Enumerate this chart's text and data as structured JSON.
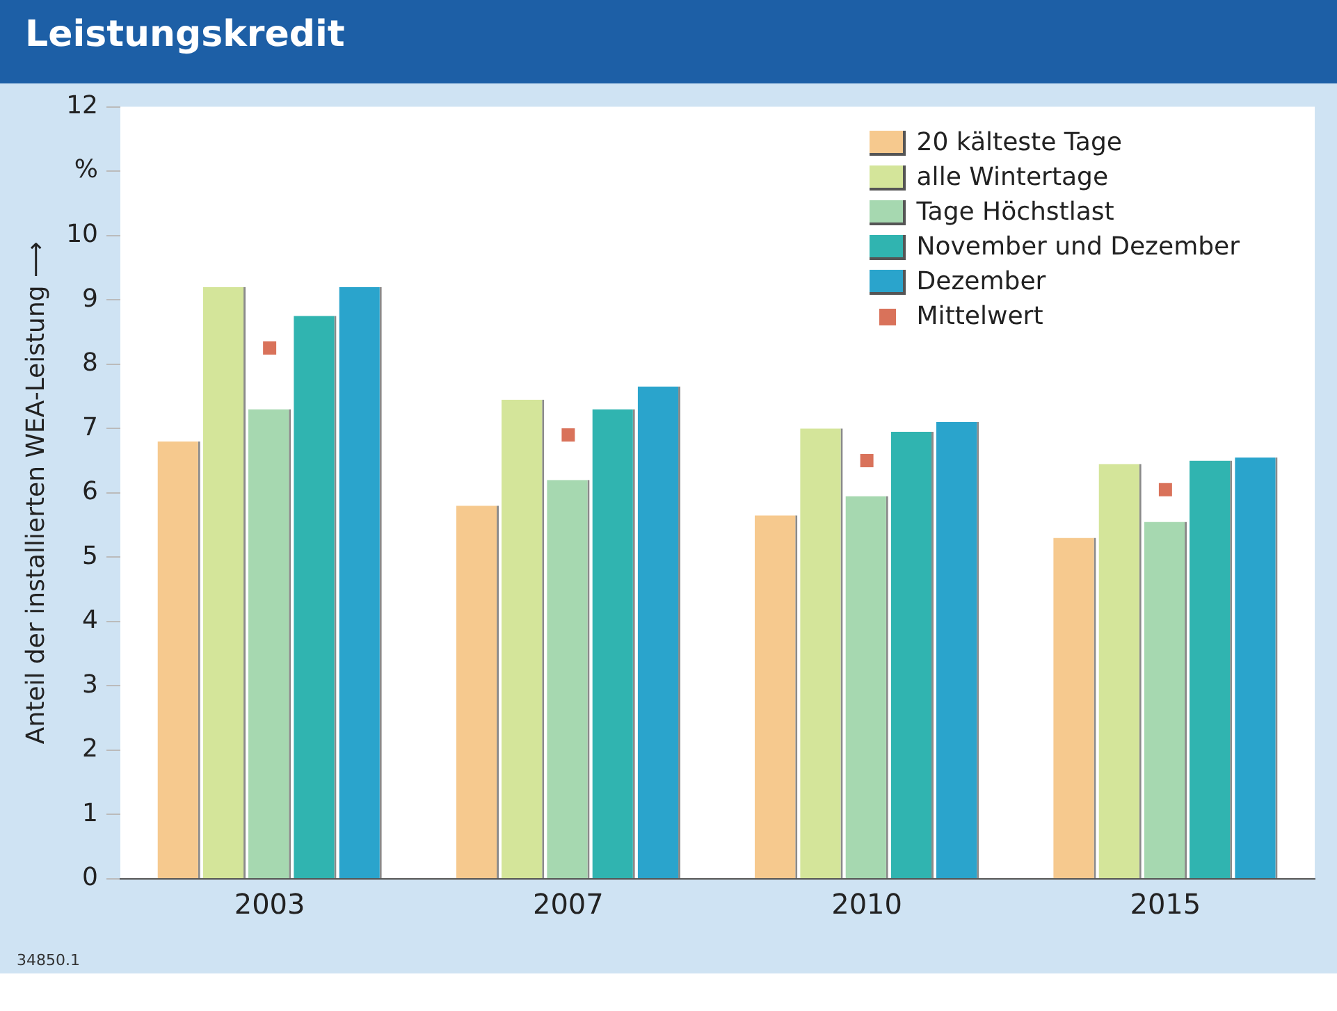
{
  "chart_data": {
    "type": "bar",
    "title": "Leistungskredit",
    "ylabel": "Anteil der installierten WEA-Leistung ⟶",
    "categories": [
      "2003",
      "2007",
      "2010",
      "2015"
    ],
    "series": [
      {
        "name": "20 kälteste Tage",
        "color": "#f6c98e",
        "values": [
          6.8,
          5.8,
          5.65,
          5.3
        ]
      },
      {
        "name": "alle Wintertage",
        "color": "#d4e59a",
        "values": [
          9.2,
          7.45,
          7.0,
          6.45
        ]
      },
      {
        "name": "Tage Höchstlast",
        "color": "#a6d8b0",
        "values": [
          7.3,
          6.2,
          5.95,
          5.55
        ]
      },
      {
        "name": "November und Dezember",
        "color": "#30b4b0",
        "values": [
          8.75,
          7.3,
          6.95,
          6.5
        ]
      },
      {
        "name": "Dezember",
        "color": "#2aa4cc",
        "values": [
          9.2,
          7.65,
          7.1,
          6.55
        ]
      },
      {
        "name": "Mittelwert",
        "type": "scatter",
        "marker": "square",
        "color": "#d9725a",
        "values": [
          8.25,
          6.9,
          6.5,
          6.05
        ]
      }
    ],
    "ylim": [
      0,
      12
    ],
    "yticks": [
      0,
      1,
      2,
      3,
      4,
      5,
      6,
      7,
      8,
      9,
      10,
      {
        "value": 11,
        "label": "%"
      },
      12
    ],
    "grid": false,
    "legend": "top right",
    "annotations": [
      "34850.1"
    ]
  }
}
